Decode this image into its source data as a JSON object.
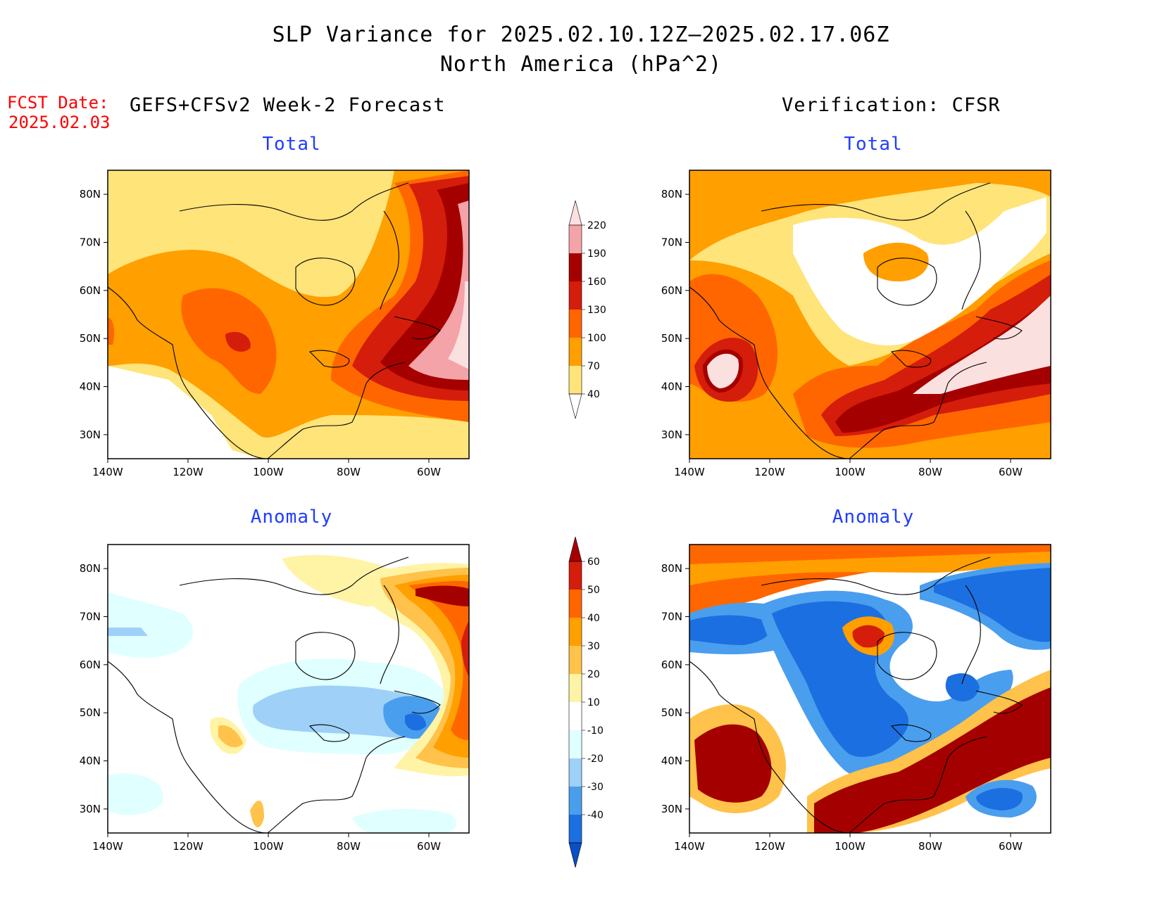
{
  "header": {
    "title_line1": "SLP Variance for 2025.02.10.12Z—2025.02.17.06Z",
    "title_line2": "North America (hPa^2)",
    "fcst_label": "FCST Date:",
    "fcst_date": "2025.02.03",
    "left_column": "GEFS+CFSv2 Week-2 Forecast",
    "right_column": "Verification: CFSR"
  },
  "panels": {
    "top_left_title": "Total",
    "top_right_title": "Total",
    "bottom_left_title": "Anomaly",
    "bottom_right_title": "Anomaly"
  },
  "map_axes": {
    "lon_ticks": [
      "140W",
      "120W",
      "100W",
      "80W",
      "60W"
    ],
    "lat_ticks": [
      "80N",
      "70N",
      "60N",
      "50N",
      "40N",
      "30N"
    ],
    "lon_range": [
      -140,
      -50
    ],
    "lat_range": [
      25,
      85
    ]
  },
  "total_colorbar": {
    "labels": [
      "220",
      "190",
      "160",
      "130",
      "100",
      "70",
      "40"
    ],
    "colors": [
      "#fbe0e0",
      "#f4a3a8",
      "#a50000",
      "#d51d0b",
      "#ff6600",
      "#ff9f00",
      "#ffe47a",
      "#ffffff"
    ]
  },
  "anomaly_colorbar": {
    "labels": [
      "60",
      "50",
      "40",
      "30",
      "20",
      "10",
      "-10",
      "-20",
      "-30",
      "-40"
    ],
    "colors": [
      "#a50000",
      "#d51d0b",
      "#ff6600",
      "#ff9f00",
      "#ffc24a",
      "#fff3a6",
      "#ffffff",
      "#e0ffff",
      "#9fd0f7",
      "#4a9eee",
      "#1c6fe0",
      "#0a4fc7"
    ]
  }
}
